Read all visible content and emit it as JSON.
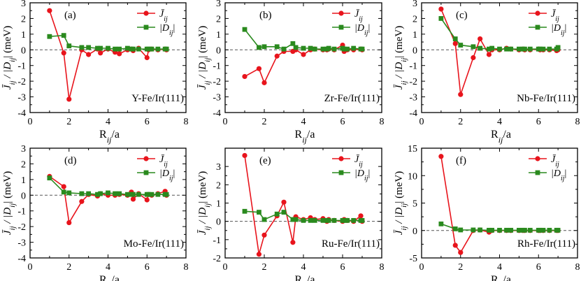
{
  "figure": {
    "legend_j": "J̄",
    "legend_j_sub": "ij",
    "legend_d": "|D",
    "legend_d_sub": "ij",
    "legend_d_end": "|"
  },
  "chart_data": [
    {
      "type": "line",
      "panel": "(a)",
      "label": "Y-Fe/Ir(111)",
      "xlabel": "R_ij/a",
      "ylabel": "J̄_ij / |D_ij| (meV)",
      "xlim": [
        0,
        8
      ],
      "ylim": [
        -4,
        3
      ],
      "xticks": [
        0,
        2,
        4,
        6,
        8
      ],
      "yticks": [
        -4,
        -3,
        -2,
        -1,
        0,
        1,
        2,
        3
      ],
      "series": [
        {
          "name": "J̄_ij",
          "color": "#e8141c",
          "marker": "circle",
          "x": [
            1.0,
            1.73,
            2.0,
            2.65,
            3.0,
            3.46,
            3.61,
            4.0,
            4.36,
            4.58,
            5.0,
            5.2,
            5.29,
            5.57,
            6.0,
            6.08,
            6.24,
            6.56,
            6.93,
            7.0
          ],
          "y": [
            2.5,
            -0.2,
            -3.15,
            0.0,
            -0.3,
            0.05,
            -0.2,
            0.05,
            -0.15,
            -0.25,
            0.0,
            0.05,
            -0.05,
            0.1,
            -0.5,
            0.0,
            0.05,
            0.0,
            0.05,
            0.0
          ]
        },
        {
          "name": "|D_ij|",
          "color": "#2a8a1e",
          "marker": "square",
          "x": [
            1.0,
            1.73,
            2.0,
            2.65,
            3.0,
            3.46,
            3.61,
            4.0,
            4.36,
            4.58,
            5.0,
            5.2,
            5.29,
            5.57,
            6.0,
            6.08,
            6.24,
            6.56,
            6.93,
            7.0
          ],
          "y": [
            0.85,
            0.92,
            0.25,
            0.15,
            0.15,
            0.1,
            0.1,
            0.1,
            0.05,
            0.05,
            0.1,
            0.05,
            0.05,
            0.05,
            0.05,
            0.05,
            0.05,
            0.05,
            0.05,
            0.05
          ]
        }
      ]
    },
    {
      "type": "line",
      "panel": "(b)",
      "label": "Zr-Fe/Ir(111)",
      "xlabel": "R_ij/a",
      "ylabel": "J̄_ij / |D_ij| (meV)",
      "xlim": [
        0,
        8
      ],
      "ylim": [
        -4,
        3
      ],
      "xticks": [
        0,
        2,
        4,
        6,
        8
      ],
      "yticks": [
        -4,
        -3,
        -2,
        -1,
        0,
        1,
        2,
        3
      ],
      "series": [
        {
          "name": "J̄_ij",
          "color": "#e8141c",
          "marker": "circle",
          "x": [
            1.0,
            1.73,
            2.0,
            2.65,
            3.0,
            3.46,
            3.61,
            4.0,
            4.36,
            4.58,
            5.0,
            5.2,
            5.29,
            5.57,
            6.0,
            6.08,
            6.24,
            6.56,
            6.93,
            7.0
          ],
          "y": [
            -1.7,
            -1.2,
            -2.1,
            -0.4,
            -0.1,
            -0.1,
            0.0,
            -0.3,
            0.0,
            0.05,
            0.0,
            0.0,
            0.05,
            0.0,
            0.3,
            -0.1,
            0.0,
            0.0,
            0.05,
            0.0
          ]
        },
        {
          "name": "|D_ij|",
          "color": "#2a8a1e",
          "marker": "square",
          "x": [
            1.0,
            1.73,
            2.0,
            2.65,
            3.0,
            3.46,
            3.61,
            4.0,
            4.36,
            4.58,
            5.0,
            5.2,
            5.29,
            5.57,
            6.0,
            6.08,
            6.24,
            6.56,
            6.93,
            7.0
          ],
          "y": [
            1.3,
            0.15,
            0.2,
            0.2,
            0.05,
            0.4,
            0.15,
            0.1,
            0.1,
            0.05,
            0.05,
            0.05,
            0.1,
            0.05,
            0.1,
            0.05,
            0.05,
            0.1,
            0.05,
            0.05
          ]
        }
      ]
    },
    {
      "type": "line",
      "panel": "(c)",
      "label": "Nb-Fe/Ir(111)",
      "xlabel": "R_ij/a",
      "ylabel": "J̄_ij / |D_ij| (meV)",
      "xlim": [
        0,
        8
      ],
      "ylim": [
        -4,
        3
      ],
      "xticks": [
        0,
        2,
        4,
        6,
        8
      ],
      "yticks": [
        -4,
        -3,
        -2,
        -1,
        0,
        1,
        2,
        3
      ],
      "series": [
        {
          "name": "J̄_ij",
          "color": "#e8141c",
          "marker": "circle",
          "x": [
            1.0,
            1.73,
            2.0,
            2.65,
            3.0,
            3.46,
            3.61,
            4.0,
            4.36,
            4.58,
            5.0,
            5.2,
            5.29,
            5.57,
            6.0,
            6.08,
            6.24,
            6.56,
            6.93,
            7.0
          ],
          "y": [
            2.6,
            0.4,
            -2.85,
            -0.5,
            0.7,
            -0.3,
            0.0,
            0.0,
            0.1,
            0.05,
            0.0,
            0.05,
            0.0,
            0.0,
            0.05,
            0.0,
            0.0,
            0.0,
            -0.05,
            0.0
          ]
        },
        {
          "name": "|D_ij|",
          "color": "#2a8a1e",
          "marker": "square",
          "x": [
            1.0,
            1.73,
            2.0,
            2.65,
            3.0,
            3.46,
            3.61,
            4.0,
            4.36,
            4.58,
            5.0,
            5.2,
            5.29,
            5.57,
            6.0,
            6.08,
            6.24,
            6.56,
            6.93,
            7.0
          ],
          "y": [
            2.0,
            0.7,
            0.3,
            0.2,
            0.1,
            0.05,
            0.1,
            0.05,
            0.05,
            0.05,
            0.05,
            0.05,
            0.05,
            0.05,
            0.05,
            0.05,
            0.05,
            0.05,
            0.05,
            0.15
          ]
        }
      ]
    },
    {
      "type": "line",
      "panel": "(d)",
      "label": "Mo-Fe/Ir(111)",
      "xlabel": "R_ij/a",
      "ylabel": "J̄_ij / |D_ij| (meV)",
      "xlim": [
        0,
        8
      ],
      "ylim": [
        -4,
        3
      ],
      "xticks": [
        0,
        2,
        4,
        6,
        8
      ],
      "yticks": [
        -4,
        -3,
        -2,
        -1,
        0,
        1,
        2,
        3
      ],
      "series": [
        {
          "name": "J̄_ij",
          "color": "#e8141c",
          "marker": "circle",
          "x": [
            1.0,
            1.73,
            2.0,
            2.65,
            3.0,
            3.46,
            3.61,
            4.0,
            4.36,
            4.58,
            5.0,
            5.2,
            5.29,
            5.57,
            6.0,
            6.08,
            6.24,
            6.56,
            6.93,
            7.0
          ],
          "y": [
            1.2,
            0.55,
            -1.75,
            -0.4,
            0.05,
            -0.05,
            0.1,
            0.0,
            0.0,
            0.05,
            0.0,
            0.2,
            -0.25,
            0.1,
            -0.3,
            0.05,
            0.0,
            0.1,
            0.25,
            0.0
          ]
        },
        {
          "name": "|D_ij|",
          "color": "#2a8a1e",
          "marker": "square",
          "x": [
            1.0,
            1.73,
            2.0,
            2.65,
            3.0,
            3.46,
            3.61,
            4.0,
            4.36,
            4.58,
            5.0,
            5.2,
            5.29,
            5.57,
            6.0,
            6.08,
            6.24,
            6.56,
            6.93,
            7.0
          ],
          "y": [
            1.1,
            0.2,
            0.15,
            0.1,
            0.1,
            0.05,
            0.1,
            0.15,
            0.1,
            0.1,
            0.05,
            0.05,
            0.05,
            0.05,
            0.05,
            0.05,
            0.05,
            0.05,
            0.05,
            0.05
          ]
        }
      ]
    },
    {
      "type": "line",
      "panel": "(e)",
      "label": "Ru-Fe/Ir(111)",
      "xlabel": "R_ij/a",
      "ylabel": "J̄_ij / |D_ij| (meV)",
      "xlim": [
        0,
        8
      ],
      "ylim": [
        -2,
        4
      ],
      "xticks": [
        0,
        2,
        4,
        6,
        8
      ],
      "yticks": [
        -2,
        -1,
        0,
        1,
        2,
        3
      ],
      "series": [
        {
          "name": "J̄_ij",
          "color": "#e8141c",
          "marker": "circle",
          "x": [
            1.0,
            1.73,
            2.0,
            2.65,
            3.0,
            3.46,
            3.61,
            4.0,
            4.36,
            4.58,
            5.0,
            5.2,
            5.29,
            5.57,
            6.0,
            6.08,
            6.24,
            6.56,
            6.93,
            7.0
          ],
          "y": [
            3.6,
            -1.8,
            -0.75,
            0.3,
            1.05,
            -1.15,
            0.25,
            0.1,
            0.2,
            0.1,
            0.15,
            0.0,
            0.1,
            0.05,
            0.0,
            0.1,
            0.05,
            0.0,
            0.3,
            0.0
          ]
        },
        {
          "name": "|D_ij|",
          "color": "#2a8a1e",
          "marker": "square",
          "x": [
            1.0,
            1.73,
            2.0,
            2.65,
            3.0,
            3.46,
            3.61,
            4.0,
            4.36,
            4.58,
            5.0,
            5.2,
            5.29,
            5.57,
            6.0,
            6.08,
            6.24,
            6.56,
            6.93,
            7.0
          ],
          "y": [
            0.55,
            0.5,
            0.1,
            0.4,
            0.5,
            0.1,
            0.1,
            0.05,
            0.05,
            0.05,
            0.05,
            0.05,
            0.05,
            0.05,
            0.05,
            0.05,
            0.05,
            0.05,
            0.05,
            0.05
          ]
        }
      ]
    },
    {
      "type": "line",
      "panel": "(f)",
      "label": "Rh-Fe/Ir(111)",
      "xlabel": "R_ij/a",
      "ylabel": "J̄_ij / |D_ij| (meV)",
      "xlim": [
        0,
        8
      ],
      "ylim": [
        -5,
        15
      ],
      "xticks": [
        0,
        2,
        4,
        6,
        8
      ],
      "yticks": [
        -5,
        0,
        5,
        10,
        15
      ],
      "series": [
        {
          "name": "J̄_ij",
          "color": "#e8141c",
          "marker": "circle",
          "x": [
            1.0,
            1.73,
            2.0,
            2.65,
            3.0,
            3.46,
            3.61,
            4.0,
            4.36,
            4.58,
            5.0,
            5.2,
            5.29,
            5.57,
            6.0,
            6.08,
            6.24,
            6.56,
            6.93,
            7.0
          ],
          "y": [
            13.5,
            -2.7,
            -4.0,
            0.0,
            0.1,
            -0.3,
            0.0,
            0.0,
            0.0,
            0.0,
            0.0,
            0.0,
            0.0,
            0.0,
            0.0,
            0.0,
            0.0,
            0.0,
            0.0,
            0.0
          ]
        },
        {
          "name": "|D_ij|",
          "color": "#2a8a1e",
          "marker": "square",
          "x": [
            1.0,
            1.73,
            2.0,
            2.65,
            3.0,
            3.46,
            3.61,
            4.0,
            4.36,
            4.58,
            5.0,
            5.2,
            5.29,
            5.57,
            6.0,
            6.08,
            6.24,
            6.56,
            6.93,
            7.0
          ],
          "y": [
            1.2,
            0.3,
            0.1,
            0.1,
            0.1,
            0.05,
            0.05,
            0.05,
            0.05,
            0.05,
            0.05,
            0.05,
            0.05,
            0.05,
            0.05,
            0.05,
            0.05,
            0.05,
            0.05,
            0.05
          ]
        }
      ]
    }
  ]
}
